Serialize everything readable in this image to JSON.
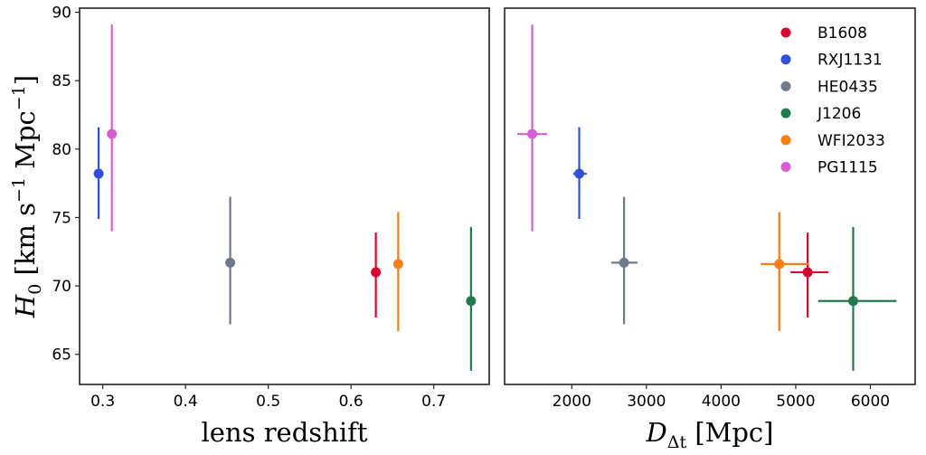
{
  "chart_data": [
    {
      "type": "scatter",
      "panel": "left",
      "title": "",
      "xlabel": "lens redshift",
      "ylabel": "H_0 [km s^-1 Mpc^-1]",
      "xlim": [
        0.272,
        0.767
      ],
      "ylim": [
        62.8,
        90.3
      ],
      "xticks": [
        0.3,
        0.4,
        0.5,
        0.6,
        0.7
      ],
      "xtick_labels": [
        "0.3",
        "0.4",
        "0.5",
        "0.6",
        "0.7"
      ],
      "yticks": [
        65,
        70,
        75,
        80,
        85,
        90
      ],
      "ytick_labels": [
        "65",
        "70",
        "75",
        "80",
        "85",
        "90"
      ],
      "grid": false,
      "series": [
        {
          "name": "B1608",
          "color": "#d7062f",
          "x": 0.63,
          "y": 71.0,
          "y_err_low": 3.3,
          "y_err_high": 2.9
        },
        {
          "name": "RXJ1131",
          "color": "#3050d8",
          "x": 0.295,
          "y": 78.2,
          "y_err_low": 3.3,
          "y_err_high": 3.4
        },
        {
          "name": "HE0435",
          "color": "#6c7a8a",
          "x": 0.454,
          "y": 71.7,
          "y_err_low": 4.5,
          "y_err_high": 4.8
        },
        {
          "name": "J1206",
          "color": "#237a4a",
          "x": 0.745,
          "y": 68.9,
          "y_err_low": 5.1,
          "y_err_high": 5.4
        },
        {
          "name": "WFI2033",
          "color": "#f77f16",
          "x": 0.657,
          "y": 71.6,
          "y_err_low": 4.9,
          "y_err_high": 3.8
        },
        {
          "name": "PG1115",
          "color": "#d65ed0",
          "x": 0.311,
          "y": 81.1,
          "y_err_low": 7.1,
          "y_err_high": 8.0
        }
      ]
    },
    {
      "type": "scatter",
      "panel": "right",
      "title": "",
      "xlabel": "D_Δt [Mpc]",
      "ylabel": "",
      "xlim": [
        1100,
        6600
      ],
      "ylim": [
        62.8,
        90.3
      ],
      "xticks": [
        2000,
        3000,
        4000,
        5000,
        6000
      ],
      "xtick_labels": [
        "2000",
        "3000",
        "4000",
        "5000",
        "6000"
      ],
      "shared_y": true,
      "grid": false,
      "legend": {
        "position": "top-right",
        "entries": [
          "B1608",
          "RXJ1131",
          "HE0435",
          "J1206",
          "WFI2033",
          "PG1115"
        ]
      },
      "series": [
        {
          "name": "B1608",
          "color": "#d7062f",
          "x": 5160,
          "x_err_low": 230,
          "x_err_high": 280,
          "y": 71.0,
          "y_err_low": 3.3,
          "y_err_high": 2.9
        },
        {
          "name": "RXJ1131",
          "color": "#3050d8",
          "x": 2100,
          "x_err_low": 80,
          "x_err_high": 100,
          "y": 78.2,
          "y_err_low": 3.3,
          "y_err_high": 3.4
        },
        {
          "name": "HE0435",
          "color": "#6c7a8a",
          "x": 2700,
          "x_err_low": 170,
          "x_err_high": 180,
          "y": 71.7,
          "y_err_low": 4.5,
          "y_err_high": 4.8
        },
        {
          "name": "J1206",
          "color": "#237a4a",
          "x": 5770,
          "x_err_low": 470,
          "x_err_high": 580,
          "y": 68.9,
          "y_err_low": 5.1,
          "y_err_high": 5.4
        },
        {
          "name": "WFI2033",
          "color": "#f77f16",
          "x": 4780,
          "x_err_low": 250,
          "x_err_high": 400,
          "y": 71.6,
          "y_err_low": 4.9,
          "y_err_high": 3.8
        },
        {
          "name": "PG1115",
          "color": "#d65ed0",
          "x": 1470,
          "x_err_low": 200,
          "x_err_high": 200,
          "y": 81.1,
          "y_err_low": 7.1,
          "y_err_high": 8.0
        }
      ]
    }
  ]
}
